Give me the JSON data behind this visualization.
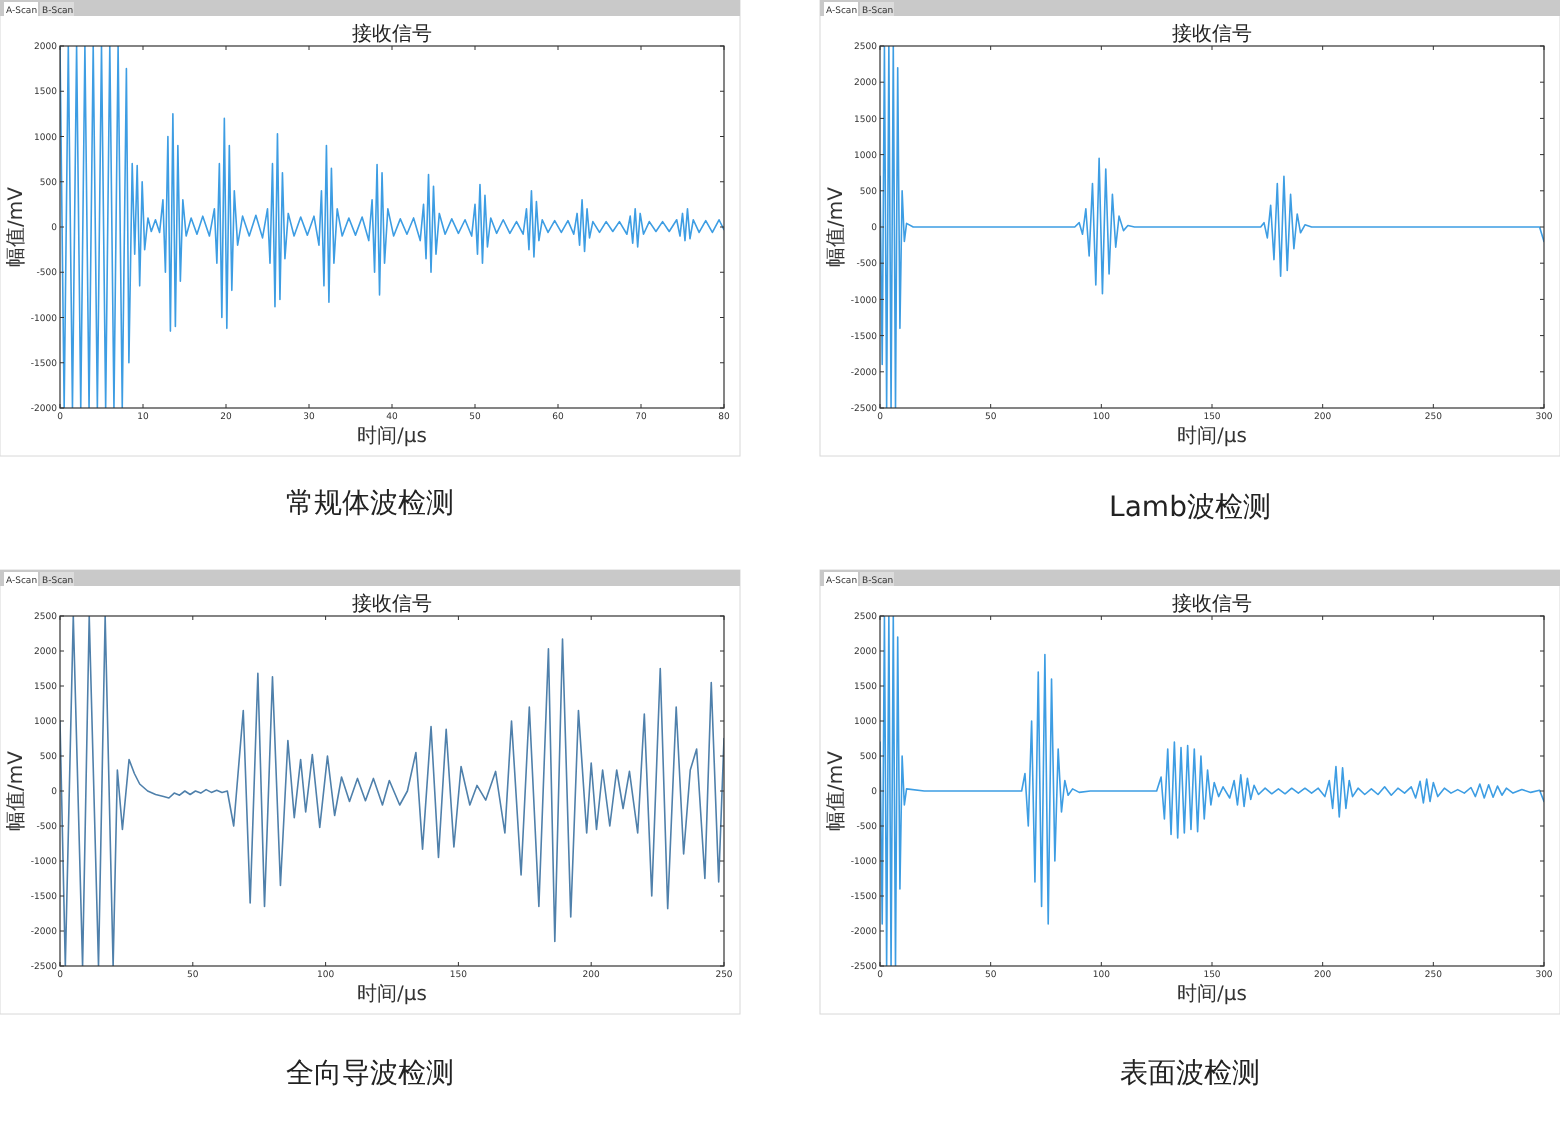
{
  "chart_data": [
    {
      "type": "line",
      "title": "接收信号",
      "subtitle": "常规体波检测",
      "xlabel": "时间/μs",
      "ylabel": "幅值/mV",
      "annotations": [
        "A-Scan",
        "B-Scan"
      ],
      "xlim": [
        0,
        80
      ],
      "xticks": [
        0,
        10,
        20,
        30,
        40,
        50,
        60,
        70,
        80
      ],
      "ylim": [
        -2000,
        2000
      ],
      "yticks": [
        -2000,
        -1500,
        -1000,
        -500,
        0,
        500,
        1000,
        1500,
        2000
      ],
      "grid": false,
      "marker": "none",
      "line_style": "solid",
      "series": [
        {
          "color": "#3d9de3",
          "x": [
            0,
            0.5,
            1,
            1.5,
            2,
            2.5,
            3,
            3.5,
            4,
            4.5,
            5,
            5.5,
            6,
            6.5,
            7,
            7.5,
            8,
            8.3,
            8.7,
            9,
            9.3,
            9.6,
            9.9,
            10.2,
            10.6,
            11,
            11.5,
            12,
            12.4,
            12.7,
            13,
            13.3,
            13.6,
            13.9,
            14.2,
            14.5,
            14.8,
            15.2,
            15.8,
            16.5,
            17.2,
            18,
            18.6,
            18.9,
            19.2,
            19.5,
            19.8,
            20.1,
            20.4,
            20.7,
            21,
            21.4,
            22,
            22.8,
            23.6,
            24.4,
            25,
            25.3,
            25.6,
            25.9,
            26.2,
            26.5,
            26.8,
            27.1,
            27.5,
            28.2,
            29,
            29.8,
            30.6,
            31.2,
            31.5,
            31.8,
            32.1,
            32.4,
            32.7,
            33,
            33.4,
            34,
            34.8,
            35.6,
            36.4,
            37.2,
            37.6,
            37.9,
            38.2,
            38.5,
            38.8,
            39.1,
            39.5,
            40.2,
            41,
            41.8,
            42.6,
            43.4,
            43.8,
            44.1,
            44.4,
            44.7,
            45,
            45.3,
            45.7,
            46.4,
            47.2,
            48,
            48.8,
            49.6,
            50,
            50.3,
            50.6,
            50.9,
            51.2,
            51.5,
            51.9,
            52.6,
            53.4,
            54.2,
            55,
            55.8,
            56.2,
            56.5,
            56.8,
            57.1,
            57.4,
            57.7,
            58.1,
            58.8,
            59.6,
            60.4,
            61.2,
            61.9,
            62.3,
            62.6,
            62.9,
            63.2,
            63.5,
            63.8,
            64.2,
            65,
            65.8,
            66.6,
            67.4,
            68.3,
            68.7,
            69,
            69.3,
            69.6,
            69.9,
            70.3,
            71,
            71.8,
            72.6,
            73.4,
            74.3,
            74.7,
            75,
            75.3,
            75.6,
            75.9,
            76.3,
            77,
            77.8,
            78.6,
            79.4,
            80
          ],
          "values": [
            2000,
            -2000,
            2000,
            -2000,
            2000,
            -2000,
            2000,
            -2000,
            2000,
            -2000,
            2000,
            -2000,
            2000,
            -2000,
            2000,
            -2000,
            1750,
            -1500,
            700,
            -300,
            680,
            -650,
            500,
            -250,
            100,
            -50,
            80,
            -60,
            300,
            -500,
            1000,
            -1150,
            1250,
            -1100,
            900,
            -600,
            300,
            -100,
            100,
            -80,
            120,
            -100,
            200,
            -400,
            700,
            -1000,
            1200,
            -1120,
            900,
            -700,
            400,
            -200,
            120,
            -100,
            130,
            -120,
            200,
            -400,
            700,
            -880,
            1030,
            -800,
            600,
            -350,
            150,
            -100,
            110,
            -90,
            120,
            -200,
            400,
            -650,
            900,
            -830,
            650,
            -400,
            200,
            -100,
            100,
            -90,
            110,
            -150,
            300,
            -500,
            690,
            -750,
            600,
            -400,
            200,
            -100,
            90,
            -80,
            100,
            -150,
            250,
            -350,
            580,
            -500,
            450,
            -300,
            150,
            -80,
            90,
            -70,
            80,
            -100,
            250,
            -300,
            470,
            -400,
            350,
            -220,
            100,
            -70,
            80,
            -70,
            60,
            -80,
            200,
            -250,
            400,
            -330,
            280,
            -150,
            80,
            -60,
            70,
            -60,
            70,
            -80,
            150,
            -200,
            300,
            -270,
            200,
            -120,
            60,
            -60,
            60,
            -50,
            60,
            -80,
            120,
            -180,
            200,
            -220,
            150,
            -80,
            60,
            -50,
            60,
            -50,
            80,
            -100,
            150,
            -150,
            200,
            -130,
            80,
            -60,
            70,
            -60,
            80,
            -30
          ]
        }
      ]
    },
    {
      "type": "line",
      "title": "接收信号",
      "subtitle": "Lamb波检测",
      "xlabel": "时间/μs",
      "ylabel": "幅值/mV",
      "annotations": [
        "A-Scan",
        "B-Scan"
      ],
      "xlim": [
        0,
        300
      ],
      "xticks": [
        0,
        50,
        100,
        150,
        200,
        250,
        300
      ],
      "ylim": [
        -2500,
        2500
      ],
      "yticks": [
        -2500,
        -2000,
        -1500,
        -1000,
        -500,
        0,
        500,
        1000,
        1500,
        2000,
        2500
      ],
      "grid": false,
      "marker": "none",
      "line_style": "solid",
      "series": [
        {
          "color": "#3d9de3",
          "x": [
            0,
            1,
            2,
            3,
            4,
            5,
            6,
            7,
            8,
            9,
            10,
            11,
            12,
            15,
            30,
            60,
            88,
            90,
            91.5,
            93,
            94.5,
            96,
            97.5,
            99,
            100.5,
            102,
            103.5,
            105,
            106.5,
            108,
            110,
            112,
            115,
            150,
            172,
            173.5,
            175,
            176.5,
            178,
            179.5,
            181,
            182.5,
            184,
            185.5,
            187,
            188.5,
            190,
            192,
            195,
            250,
            298,
            299,
            300
          ],
          "values": [
            700,
            -1900,
            2500,
            -2500,
            2500,
            -2500,
            2500,
            -2500,
            2200,
            -1400,
            500,
            -200,
            50,
            0,
            0,
            0,
            0,
            60,
            -100,
            250,
            -400,
            600,
            -800,
            950,
            -920,
            800,
            -650,
            450,
            -280,
            150,
            -50,
            20,
            0,
            0,
            0,
            60,
            -150,
            300,
            -450,
            600,
            -680,
            700,
            -600,
            450,
            -300,
            180,
            -80,
            30,
            0,
            0,
            0,
            -100,
            -200
          ]
        }
      ]
    },
    {
      "type": "line",
      "title": "接收信号",
      "subtitle": "全向导波检测",
      "xlabel": "时间/μs",
      "ylabel": "幅值/mV",
      "annotations": [
        "A-Scan",
        "B-Scan"
      ],
      "xlim": [
        0,
        250
      ],
      "xticks": [
        0,
        50,
        100,
        150,
        200,
        250
      ],
      "ylim": [
        -2500,
        2500
      ],
      "yticks": [
        -2500,
        -2000,
        -1500,
        -1000,
        -500,
        0,
        500,
        1000,
        1500,
        2000,
        2500
      ],
      "grid": false,
      "marker": "none",
      "line_style": "solid",
      "series": [
        {
          "color": "#4f80ab",
          "x": [
            0,
            2,
            5,
            8.5,
            11,
            14.5,
            17,
            20,
            21.6,
            23.5,
            26,
            28,
            30,
            33,
            36,
            39,
            41,
            43,
            45,
            47,
            49,
            51,
            53,
            55,
            57,
            59,
            61,
            63,
            65.4,
            69,
            71.6,
            74.5,
            77,
            80,
            83,
            85.8,
            88.2,
            90.6,
            92.5,
            95,
            97.8,
            100.7,
            103.4,
            106,
            109,
            112,
            115,
            118,
            121.4,
            124,
            127.9,
            130.8,
            134,
            136.5,
            139.7,
            142.5,
            145.4,
            148.3,
            151,
            154.3,
            157,
            160.3,
            164,
            167.5,
            170,
            173.6,
            176.7,
            180.3,
            183.9,
            186.3,
            189.2,
            192.3,
            195.2,
            198.3,
            200,
            202,
            204.3,
            207,
            209.6,
            212,
            214.4,
            217.5,
            220,
            222.8,
            226,
            228.8,
            232,
            234.8,
            237.3,
            239.7,
            242.8,
            245.2,
            248,
            250
          ],
          "values": [
            1000,
            -2500,
            2500,
            -2500,
            2500,
            -2500,
            2500,
            -2500,
            300,
            -550,
            450,
            250,
            100,
            0,
            -50,
            -80,
            -100,
            -30,
            -60,
            0,
            -50,
            0,
            -30,
            20,
            -20,
            10,
            -20,
            0,
            -500,
            1150,
            -1600,
            1680,
            -1650,
            1630,
            -1350,
            720,
            -380,
            450,
            -300,
            520,
            -520,
            500,
            -350,
            200,
            -150,
            180,
            -140,
            180,
            -200,
            150,
            -200,
            0,
            550,
            -830,
            920,
            -950,
            880,
            -800,
            350,
            -200,
            80,
            -130,
            280,
            -600,
            1000,
            -1200,
            1200,
            -1650,
            2030,
            -2150,
            2170,
            -1800,
            1150,
            -600,
            400,
            -550,
            300,
            -500,
            300,
            -250,
            280,
            -600,
            1100,
            -1500,
            1750,
            -1680,
            1200,
            -900,
            300,
            600,
            -1250,
            1550,
            -1300,
            750
          ]
        }
      ]
    },
    {
      "type": "line",
      "title": "接收信号",
      "subtitle": "表面波检测",
      "xlabel": "时间/μs",
      "ylabel": "幅值/mV",
      "annotations": [
        "A-Scan",
        "B-Scan"
      ],
      "xlim": [
        0,
        300
      ],
      "xticks": [
        0,
        50,
        100,
        150,
        200,
        250,
        300
      ],
      "ylim": [
        -2500,
        2500
      ],
      "yticks": [
        -2500,
        -2000,
        -1500,
        -1000,
        -500,
        0,
        500,
        1000,
        1500,
        2000,
        2500
      ],
      "grid": false,
      "marker": "none",
      "line_style": "solid",
      "series": [
        {
          "color": "#3d9de3",
          "x": [
            0,
            1,
            2,
            3,
            4,
            5,
            6,
            7,
            8,
            9,
            10,
            11,
            12,
            20,
            64,
            65.5,
            67,
            68.5,
            70,
            71.5,
            73,
            74.5,
            76,
            77.5,
            79,
            80.5,
            82,
            83.5,
            85,
            87,
            90,
            95,
            125,
            127,
            128.5,
            130,
            131.5,
            133,
            134.5,
            136,
            137.5,
            139,
            140.5,
            142,
            143.5,
            145,
            146.5,
            148,
            149.5,
            151,
            153,
            155,
            158,
            160,
            161.5,
            163,
            164.5,
            166,
            167.5,
            169,
            171,
            174,
            177,
            180,
            183,
            186,
            189,
            192,
            195,
            198,
            201,
            203,
            204.5,
            206,
            207.5,
            209,
            210.5,
            212,
            213.5,
            216,
            219,
            222,
            225,
            228,
            231,
            234,
            237,
            240,
            242,
            244,
            245.5,
            247,
            248.5,
            250,
            252,
            255,
            258,
            261,
            264,
            267,
            269,
            271,
            273,
            275,
            277,
            279,
            281,
            283,
            286,
            290,
            294,
            298,
            300
          ],
          "values": [
            700,
            -1900,
            2500,
            -2500,
            2500,
            -2500,
            2500,
            -2500,
            2200,
            -1400,
            500,
            -200,
            30,
            0,
            0,
            250,
            -500,
            1000,
            -1300,
            1700,
            -1650,
            1950,
            -1900,
            1600,
            -1000,
            600,
            -300,
            150,
            -60,
            30,
            -20,
            0,
            0,
            200,
            -400,
            600,
            -620,
            700,
            -670,
            620,
            -600,
            650,
            -550,
            600,
            -580,
            500,
            -400,
            300,
            -200,
            120,
            -80,
            60,
            -100,
            150,
            -200,
            230,
            -220,
            180,
            -120,
            80,
            -50,
            40,
            -40,
            30,
            -40,
            40,
            -30,
            40,
            -30,
            40,
            -80,
            150,
            -250,
            350,
            -370,
            330,
            -250,
            150,
            -80,
            40,
            -50,
            30,
            -50,
            60,
            -60,
            40,
            -30,
            60,
            -100,
            140,
            -170,
            170,
            -150,
            120,
            -80,
            40,
            -30,
            20,
            -30,
            50,
            -80,
            100,
            -100,
            90,
            -90,
            70,
            -60,
            40,
            -30,
            20,
            -20,
            10,
            -150
          ]
        }
      ]
    }
  ]
}
